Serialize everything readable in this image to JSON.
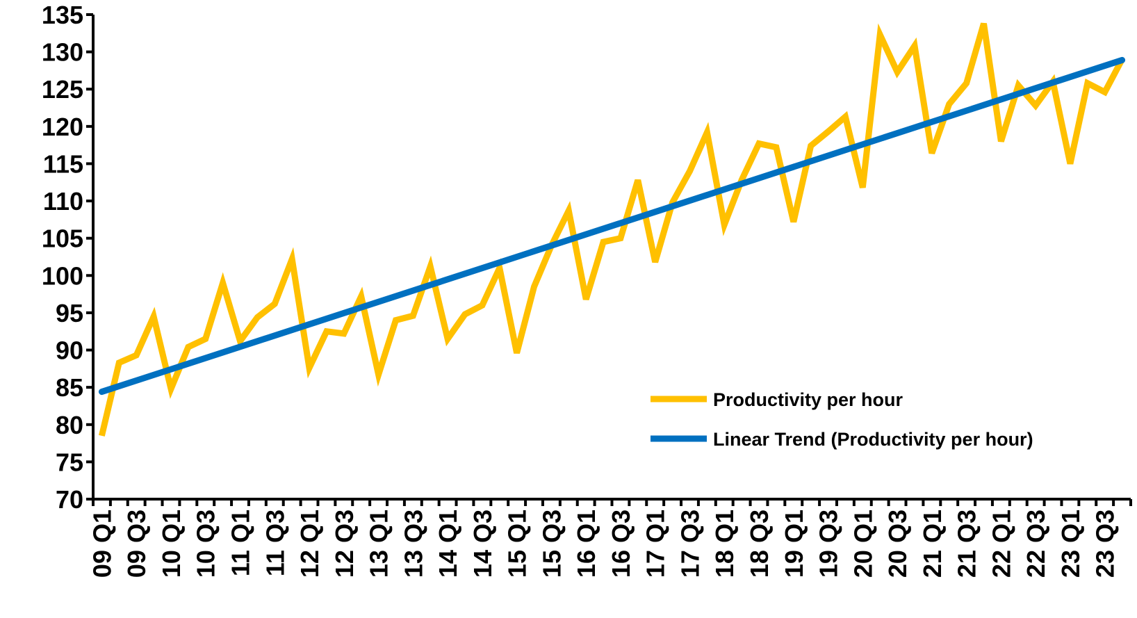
{
  "chart_data": {
    "type": "line",
    "title": "",
    "xlabel": "",
    "ylabel": "",
    "ylim": [
      70,
      135
    ],
    "y_ticks": [
      70,
      75,
      80,
      85,
      90,
      95,
      100,
      105,
      110,
      115,
      120,
      125,
      130,
      135
    ],
    "grid": false,
    "legend_position": "right",
    "categories": [
      "09 Q1",
      "09 Q2",
      "09 Q3",
      "09 Q4",
      "10 Q1",
      "10 Q2",
      "10 Q3",
      "10 Q4",
      "11 Q1",
      "11 Q2",
      "11 Q3",
      "11 Q4",
      "12 Q1",
      "12 Q2",
      "12 Q3",
      "12 Q4",
      "13 Q1",
      "13 Q2",
      "13 Q3",
      "13 Q4",
      "14 Q1",
      "14 Q2",
      "14 Q3",
      "14 Q4",
      "15 Q1",
      "15 Q2",
      "15 Q3",
      "15 Q4",
      "16 Q1",
      "16 Q2",
      "16 Q3",
      "16 Q4",
      "17 Q1",
      "17 Q2",
      "17 Q3",
      "17 Q4",
      "18 Q1",
      "18 Q2",
      "18 Q3",
      "18 Q4",
      "19 Q1",
      "19 Q2",
      "19 Q3",
      "19 Q4",
      "20 Q1",
      "20 Q2",
      "20 Q3",
      "20 Q4",
      "21 Q1",
      "21 Q2",
      "21 Q3",
      "21 Q4",
      "22 Q1",
      "22 Q2",
      "22 Q3",
      "22 Q4",
      "23 Q1",
      "23 Q2",
      "23 Q3",
      "23 Q4"
    ],
    "x_tick_labels": [
      "09 Q1",
      "09 Q3",
      "10 Q1",
      "10 Q3",
      "11 Q1",
      "11 Q3",
      "12 Q1",
      "12 Q3",
      "13 Q1",
      "13 Q3",
      "14 Q1",
      "14 Q3",
      "15 Q1",
      "15 Q3",
      "16 Q1",
      "16 Q3",
      "17 Q1",
      "17 Q3",
      "18 Q1",
      "18 Q3",
      "19 Q1",
      "19 Q3",
      "20 Q1",
      "20 Q3",
      "21 Q1",
      "21 Q3",
      "22 Q1",
      "22 Q3",
      "23 Q1",
      "23 Q3"
    ],
    "series": [
      {
        "name": "Productivity per hour",
        "color": "#FFC000",
        "values": [
          78.5,
          88.3,
          89.3,
          94.5,
          84.8,
          90.4,
          91.5,
          99.0,
          91.2,
          94.4,
          96.2,
          102.2,
          87.6,
          92.5,
          92.2,
          97.2,
          86.7,
          94.0,
          94.6,
          101.2,
          91.5,
          94.8,
          96.0,
          101.0,
          89.6,
          98.5,
          104.0,
          108.7,
          96.8,
          104.5,
          105.0,
          112.8,
          101.8,
          109.8,
          114.0,
          119.2,
          106.8,
          112.8,
          117.7,
          117.2,
          107.2,
          117.4,
          119.3,
          121.3,
          111.8,
          132.3,
          127.3,
          130.8,
          116.4,
          123.0,
          125.8,
          133.8,
          118.0,
          125.5,
          122.8,
          126.0,
          115.0,
          125.8,
          124.6,
          129.0
        ]
      },
      {
        "name": "Linear Trend (Productivity per hour)",
        "color": "#0070C0",
        "type": "trend",
        "start": 84.4,
        "end": 128.9
      }
    ]
  }
}
